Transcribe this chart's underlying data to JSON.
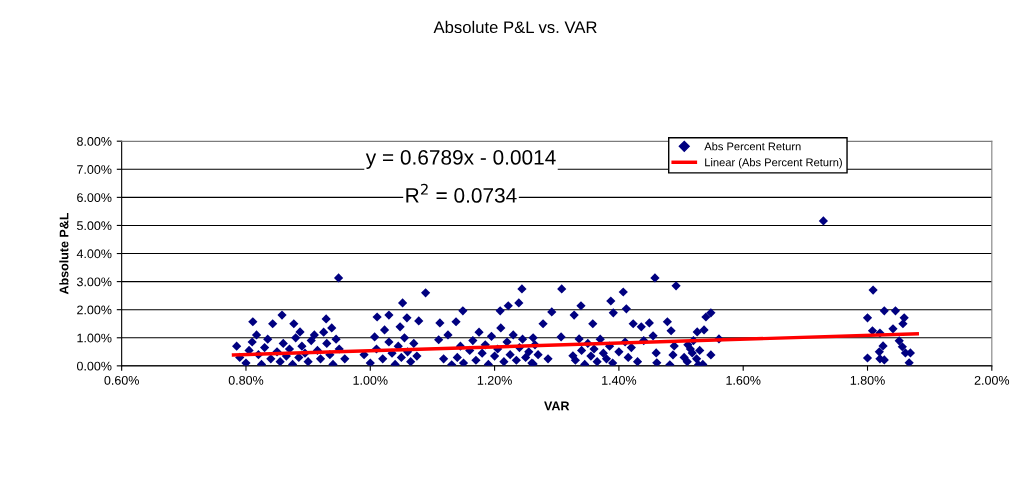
{
  "chart_data": {
    "type": "scatter",
    "title": "Absolute P&L vs. VAR",
    "xlabel": "VAR",
    "ylabel": "Absolute P&L",
    "annotations": [
      "y = 0.6789x - 0.0014",
      "R$^{2}$ = 0.0734"
    ],
    "xlim": [
      0.006,
      0.02
    ],
    "xticks": [
      {
        "value": 0.006,
        "label": "0.60%"
      },
      {
        "value": 0.008,
        "label": "0.80%"
      },
      {
        "value": 0.01,
        "label": "1.00%"
      },
      {
        "value": 0.012,
        "label": "1.20%"
      },
      {
        "value": 0.014,
        "label": "1.40%"
      },
      {
        "value": 0.016,
        "label": "1.60%"
      },
      {
        "value": 0.018,
        "label": "1.80%"
      },
      {
        "value": 0.02,
        "label": "2.00%"
      }
    ],
    "ylim": [
      0,
      0.08
    ],
    "yticks": [
      {
        "value": 0,
        "label": "0.00%"
      },
      {
        "value": 0.01,
        "label": "1.00%"
      },
      {
        "value": 0.02,
        "label": "2.00%"
      },
      {
        "value": 0.03,
        "label": "3.00%"
      },
      {
        "value": 0.04,
        "label": "4.00%"
      },
      {
        "value": 0.05,
        "label": "5.00%"
      },
      {
        "value": 0.06,
        "label": "6.00%"
      },
      {
        "value": 0.07,
        "label": "7.00%"
      },
      {
        "value": 0.08,
        "label": "8.00%"
      }
    ],
    "grid": "y",
    "legend": "top right",
    "series": [
      {
        "name": "Abs Percent Return",
        "color": "#000080",
        "marker": "diamond",
        "x": [
          0.00811,
          0.00858,
          0.00843,
          0.00877,
          0.00887,
          0.00929,
          0.00938,
          0.00817,
          0.00949,
          0.00959,
          0.01011,
          0.0103,
          0.01052,
          0.01089,
          0.01059,
          0.01023,
          0.01007,
          0.01048,
          0.01078,
          0.01149,
          0.01112,
          0.01138,
          0.01244,
          0.01308,
          0.01239,
          0.01222,
          0.01209,
          0.01292,
          0.01339,
          0.01328,
          0.01387,
          0.01391,
          0.01358,
          0.01278,
          0.0111,
          0.01125,
          0.01118,
          0.01131,
          0.01262,
          0.01307,
          0.01336,
          0.01326,
          0.01286,
          0.01262,
          0.01458,
          0.01492,
          0.01407,
          0.01412,
          0.01478,
          0.01484,
          0.01449,
          0.01436,
          0.01423,
          0.01548,
          0.0154,
          0.01537,
          0.01526,
          0.01561,
          0.01548,
          0.01455,
          0.01489,
          0.01487,
          0.01482,
          0.01461,
          0.0146,
          0.01518,
          0.01528,
          0.01511,
          0.01729,
          0.01809,
          0.018,
          0.01827,
          0.01845,
          0.01859,
          0.01857,
          0.01808,
          0.0182,
          0.01841,
          0.01851,
          0.01856,
          0.01825,
          0.01819,
          0.01861,
          0.01869,
          0.018,
          0.0182,
          0.01827,
          0.01867,
          0.00785,
          0.0079,
          0.008,
          0.00805,
          0.0081,
          0.0082,
          0.00825,
          0.0083,
          0.00835,
          0.0084,
          0.0085,
          0.00855,
          0.0086,
          0.00865,
          0.0087,
          0.00875,
          0.0088,
          0.00885,
          0.0089,
          0.00895,
          0.009,
          0.00905,
          0.0091,
          0.00915,
          0.0092,
          0.00925,
          0.0093,
          0.00935,
          0.0094,
          0.00945,
          0.0095,
          0.0099,
          0.01,
          0.0101,
          0.0102,
          0.0103,
          0.01035,
          0.0104,
          0.01045,
          0.0105,
          0.01055,
          0.0106,
          0.01065,
          0.0107,
          0.01075,
          0.0114,
          0.01145,
          0.0115,
          0.0116,
          0.01165,
          0.0117,
          0.01175,
          0.0118,
          0.01185,
          0.0119,
          0.01195,
          0.012,
          0.01205,
          0.0121,
          0.01215,
          0.0122,
          0.01225,
          0.0123,
          0.01235,
          0.0124,
          0.01245,
          0.0125,
          0.01255,
          0.0126,
          0.01265,
          0.0127,
          0.0133,
          0.0134,
          0.01345,
          0.0135,
          0.01355,
          0.0136,
          0.01365,
          0.0137,
          0.01375,
          0.0138,
          0.01385,
          0.0139,
          0.014,
          0.0141,
          0.01415,
          0.0142,
          0.0143,
          0.0144,
          0.01505,
          0.0151,
          0.01515,
          0.0152,
          0.01525,
          0.0153,
          0.01535
        ],
        "values": [
          0.0157,
          0.0181,
          0.015,
          0.015,
          0.0121,
          0.0167,
          0.0135,
          0.011,
          0.0313,
          0.0025,
          0.0174,
          0.0181,
          0.0224,
          0.026,
          0.0171,
          0.0128,
          0.0103,
          0.0139,
          0.016,
          0.0196,
          0.0153,
          0.0157,
          0.0274,
          0.0274,
          0.0224,
          0.0214,
          0.0196,
          0.0192,
          0.0214,
          0.0181,
          0.0231,
          0.0189,
          0.015,
          0.015,
          0.0093,
          0.011,
          0.0025,
          0.0004,
          0.01,
          0.0103,
          0.0096,
          0.0036,
          0.0025,
          0.0007,
          0.0313,
          0.0285,
          0.0263,
          0.0203,
          0.0157,
          0.0125,
          0.0153,
          0.0139,
          0.015,
          0.0189,
          0.0174,
          0.0128,
          0.0121,
          0.0096,
          0.0039,
          0.0107,
          0.0071,
          0.0039,
          0.0004,
          0.0011,
          0.0046,
          0.0046,
          0.0004,
          0.0075,
          0.0516,
          0.027,
          0.0171,
          0.0196,
          0.0196,
          0.0171,
          0.015,
          0.0125,
          0.0117,
          0.0132,
          0.0089,
          0.0068,
          0.0071,
          0.005,
          0.0046,
          0.0046,
          0.0028,
          0.0025,
          0.0021,
          0.0011,
          0.007,
          0.003,
          0.001,
          0.0055,
          0.0085,
          0.004,
          0.0005,
          0.0065,
          0.0095,
          0.0025,
          0.005,
          0.0015,
          0.008,
          0.0035,
          0.006,
          0.0005,
          0.01,
          0.003,
          0.007,
          0.0045,
          0.0015,
          0.009,
          0.011,
          0.0055,
          0.0025,
          0.012,
          0.008,
          0.004,
          0.0005,
          0.0095,
          0.006,
          0.004,
          0.001,
          0.006,
          0.0025,
          0.0085,
          0.0045,
          0.0005,
          0.007,
          0.003,
          0.01,
          0.005,
          0.0015,
          0.008,
          0.0035,
          0.003,
          0.007,
          0.001,
          0.0055,
          0.009,
          0.002,
          0.012,
          0.0045,
          0.0075,
          0.0005,
          0.0105,
          0.0035,
          0.006,
          0.0135,
          0.0015,
          0.0085,
          0.004,
          0.011,
          0.002,
          0.0065,
          0.0095,
          0.003,
          0.005,
          0.001,
          0.0075,
          0.004,
          0.002,
          0.0055,
          0.0005,
          0.008,
          0.0035,
          0.006,
          0.0015,
          0.0095,
          0.0045,
          0.0025,
          0.007,
          0.001,
          0.005,
          0.0085,
          0.003,
          0.0065,
          0.0015,
          0.009,
          0.003,
          0.0015,
          0.006,
          0.009,
          0.0025,
          0.0055,
          0.0005
        ]
      },
      {
        "name": "Linear (Abs Percent Return)",
        "type": "line",
        "color": "#ff0000",
        "marker": "none",
        "line_style": "solid",
        "x": [
          0.0078,
          0.0188
        ],
        "values": [
          0.0039,
          0.0114
        ]
      }
    ]
  }
}
